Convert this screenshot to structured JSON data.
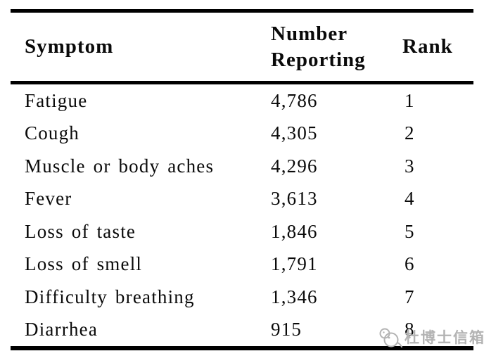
{
  "table": {
    "columns": [
      "Symptom",
      "Number Reporting",
      "Rank"
    ],
    "header": {
      "symptom": "Symptom",
      "number_line1": "Number",
      "number_line2": "Reporting",
      "rank": "Rank"
    },
    "rows": [
      {
        "symptom": "Fatigue",
        "number": "4,786",
        "rank": "1"
      },
      {
        "symptom": "Cough",
        "number": "4,305",
        "rank": "2"
      },
      {
        "symptom": "Muscle or body aches",
        "number": "4,296",
        "rank": "3"
      },
      {
        "symptom": "Fever",
        "number": "3,613",
        "rank": "4"
      },
      {
        "symptom": "Loss of taste",
        "number": "1,846",
        "rank": "5"
      },
      {
        "symptom": "Loss of smell",
        "number": "1,791",
        "rank": "6"
      },
      {
        "symptom": "Difficulty breathing",
        "number": "1,346",
        "rank": "7"
      },
      {
        "symptom": "Diarrhea",
        "number": "915",
        "rank": "8"
      }
    ]
  },
  "watermark": {
    "text": "杜博士信箱",
    "icon": "bird-pair-icon",
    "color": "#b3b3b3"
  },
  "colors": {
    "background": "#ffffff",
    "text": "#0a0a0a",
    "rule": "#000000",
    "watermark": "#b3b3b3"
  }
}
